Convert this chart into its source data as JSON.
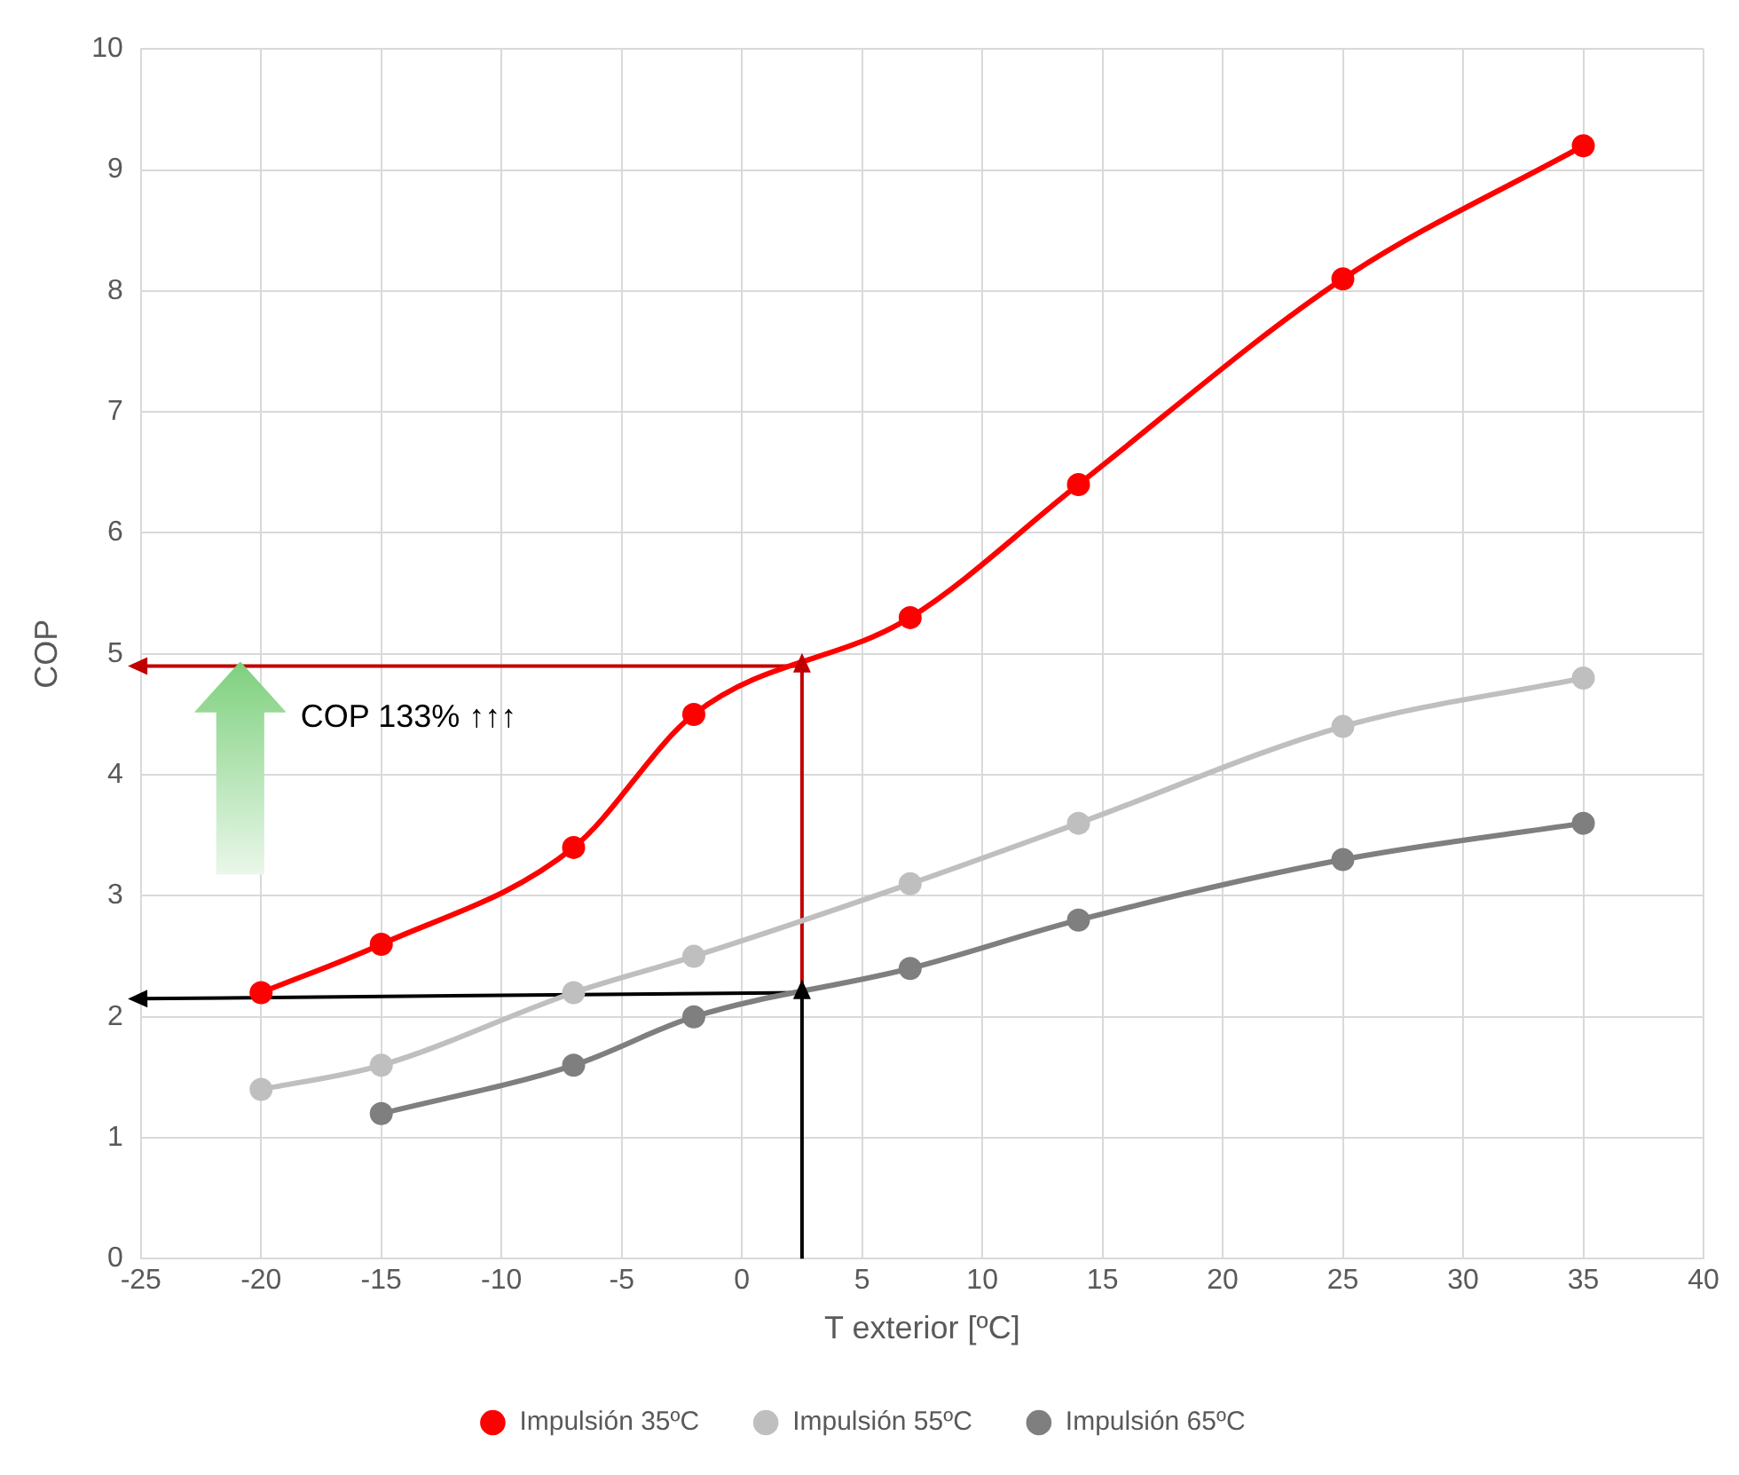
{
  "chart_data": {
    "type": "line",
    "xlabel": "T exterior [ºC]",
    "ylabel": "COP",
    "xlim": [
      -25,
      40
    ],
    "xticks": [
      -25,
      -20,
      -15,
      -10,
      -5,
      0,
      5,
      10,
      15,
      20,
      25,
      30,
      35,
      40
    ],
    "ylim": [
      0,
      10
    ],
    "yticks": [
      0,
      1,
      2,
      3,
      4,
      5,
      6,
      7,
      8,
      9,
      10
    ],
    "grid": true,
    "legend": "bottom",
    "marker": "circle",
    "series": [
      {
        "name": "Impulsión 35ºC",
        "color": "#ff0000",
        "x": [
          -20,
          -15,
          -7,
          -2,
          7,
          14,
          25,
          35
        ],
        "values": [
          2.2,
          2.6,
          3.4,
          4.5,
          5.3,
          6.4,
          8.1,
          9.2
        ]
      },
      {
        "name": "Impulsión 55ºC",
        "color": "#bfbfbf",
        "x": [
          -20,
          -15,
          -7,
          -2,
          7,
          14,
          25,
          35
        ],
        "values": [
          1.4,
          1.6,
          2.2,
          2.5,
          3.1,
          3.6,
          4.4,
          4.8
        ]
      },
      {
        "name": "Impulsión 65ºC",
        "color": "#7f7f7f",
        "x": [
          -15,
          -7,
          -2,
          7,
          14,
          25,
          35
        ],
        "values": [
          1.2,
          1.6,
          2.0,
          2.4,
          2.8,
          3.3,
          3.6
        ]
      },
      {
        "color": "#c00000",
        "marker": "triangle",
        "x": [
          2.5,
          2.5
        ],
        "values": [
          2.2,
          4.9
        ]
      },
      {
        "color": "#c00000",
        "marker": "triangle",
        "x": [
          2.5,
          -25
        ],
        "values": [
          4.9,
          4.9
        ]
      },
      {
        "color": "#000000",
        "marker": "triangle",
        "x": [
          2.5,
          2.5
        ],
        "values": [
          0,
          2.2
        ]
      },
      {
        "color": "#000000",
        "marker": "triangle",
        "x": [
          2.5,
          -25
        ],
        "values": [
          2.2,
          2.15
        ]
      }
    ],
    "annotations": [
      "COP 133% ↑↑↑"
    ]
  }
}
